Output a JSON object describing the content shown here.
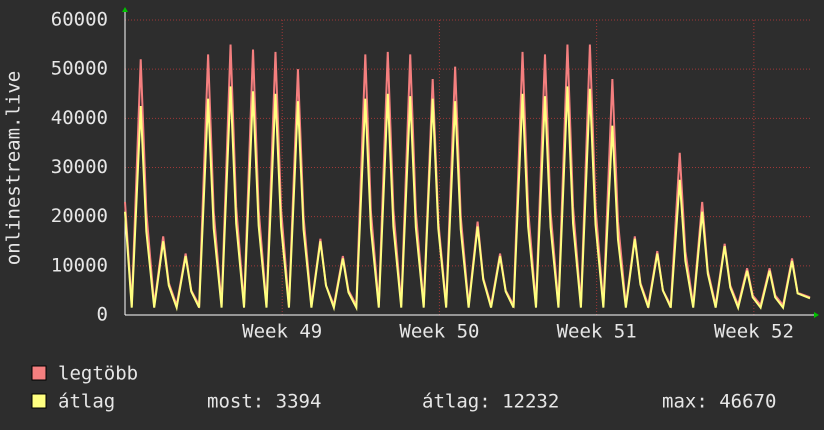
{
  "chart_data": {
    "type": "line",
    "y_label": "onlinestream.live",
    "x": [
      0,
      0.3,
      0.7,
      0.95,
      1.3,
      1.7,
      1.95,
      2.3,
      2.7,
      2.95,
      3.3,
      3.7,
      3.95,
      4.3,
      4.7,
      4.95,
      5.3,
      5.7,
      5.95,
      6.3,
      6.7,
      6.95,
      7.3,
      7.7,
      7.95,
      8.3,
      8.7,
      8.95,
      9.3,
      9.7,
      9.95,
      10.3,
      10.7,
      10.95,
      11.3,
      11.7,
      11.95,
      12.3,
      12.7,
      12.95,
      13.3,
      13.7,
      13.95,
      14.3,
      14.7,
      14.95,
      15.3,
      15.7,
      15.95,
      16.3,
      16.7,
      16.95,
      17.3,
      17.7,
      17.95,
      18.3,
      18.7,
      18.95,
      19.3,
      19.7,
      19.95,
      20.3,
      20.7,
      20.95,
      21.3,
      21.7,
      21.95,
      22.3,
      22.7,
      22.95,
      23.3,
      23.7,
      23.95,
      24.3,
      24.7,
      24.95,
      25.3,
      25.7,
      25.95,
      26.3,
      26.7,
      26.95,
      27.3,
      27.7,
      27.95,
      28.3,
      28.7,
      28.95,
      29.3,
      29.7,
      29.95,
      30.5
    ],
    "series": [
      {
        "name": "legtöbb",
        "color": "#f47f7f",
        "values": [
          23000,
          2000,
          52000,
          21000,
          2000,
          16000,
          6500,
          2000,
          12500,
          5000,
          2000,
          53000,
          21000,
          2000,
          55000,
          22000,
          2000,
          54000,
          21500,
          2000,
          53500,
          21500,
          2000,
          50000,
          20000,
          2000,
          15500,
          6000,
          2000,
          12000,
          5000,
          2000,
          53000,
          21000,
          2000,
          53500,
          21500,
          2000,
          53000,
          21000,
          2000,
          48000,
          19000,
          2000,
          50500,
          20000,
          2000,
          19000,
          7500,
          2000,
          12500,
          5000,
          2000,
          53500,
          21500,
          2000,
          53000,
          21000,
          2000,
          55000,
          22000,
          2000,
          55000,
          22000,
          2000,
          48000,
          19000,
          2000,
          16000,
          6500,
          2000,
          13000,
          5000,
          2000,
          33000,
          13000,
          2000,
          23000,
          9000,
          2000,
          14500,
          6000,
          2000,
          9500,
          4000,
          2000,
          9500,
          4000,
          2000,
          11500,
          4500,
          3600
        ]
      },
      {
        "name": "átlag",
        "color": "#ffff80",
        "values": [
          21000,
          1500,
          42500,
          17000,
          1500,
          15000,
          6000,
          1500,
          12000,
          4800,
          1500,
          44000,
          17600,
          1500,
          46500,
          18600,
          1500,
          45500,
          18200,
          1500,
          45000,
          18000,
          1500,
          43500,
          17400,
          1500,
          15000,
          6000,
          1500,
          11500,
          4600,
          1500,
          44000,
          17600,
          1500,
          45000,
          18000,
          1500,
          44500,
          17800,
          1500,
          44000,
          17600,
          1500,
          43500,
          17400,
          1500,
          18000,
          7200,
          1500,
          12000,
          4800,
          1500,
          45000,
          18000,
          1500,
          44500,
          17800,
          1500,
          46500,
          18600,
          1500,
          46000,
          18400,
          1500,
          38500,
          15400,
          1500,
          15500,
          6200,
          1500,
          12500,
          5000,
          1500,
          27500,
          11000,
          1500,
          21000,
          8400,
          1500,
          14000,
          5600,
          1500,
          9000,
          3600,
          1500,
          9000,
          3600,
          1500,
          11000,
          4400,
          3394
        ]
      }
    ],
    "xlim": [
      0,
      30.5
    ],
    "xticks": [
      {
        "value": 7,
        "label": "Week 49"
      },
      {
        "value": 14,
        "label": "Week 50"
      },
      {
        "value": 21,
        "label": "Week 51"
      },
      {
        "value": 28,
        "label": "Week 52"
      }
    ],
    "ylim": [
      0,
      60000
    ],
    "yticks": [
      0,
      10000,
      20000,
      30000,
      40000,
      50000,
      60000
    ],
    "grid": true,
    "stats": [
      "most: 3394",
      "átlag: 12232",
      "max: 46670"
    ]
  }
}
